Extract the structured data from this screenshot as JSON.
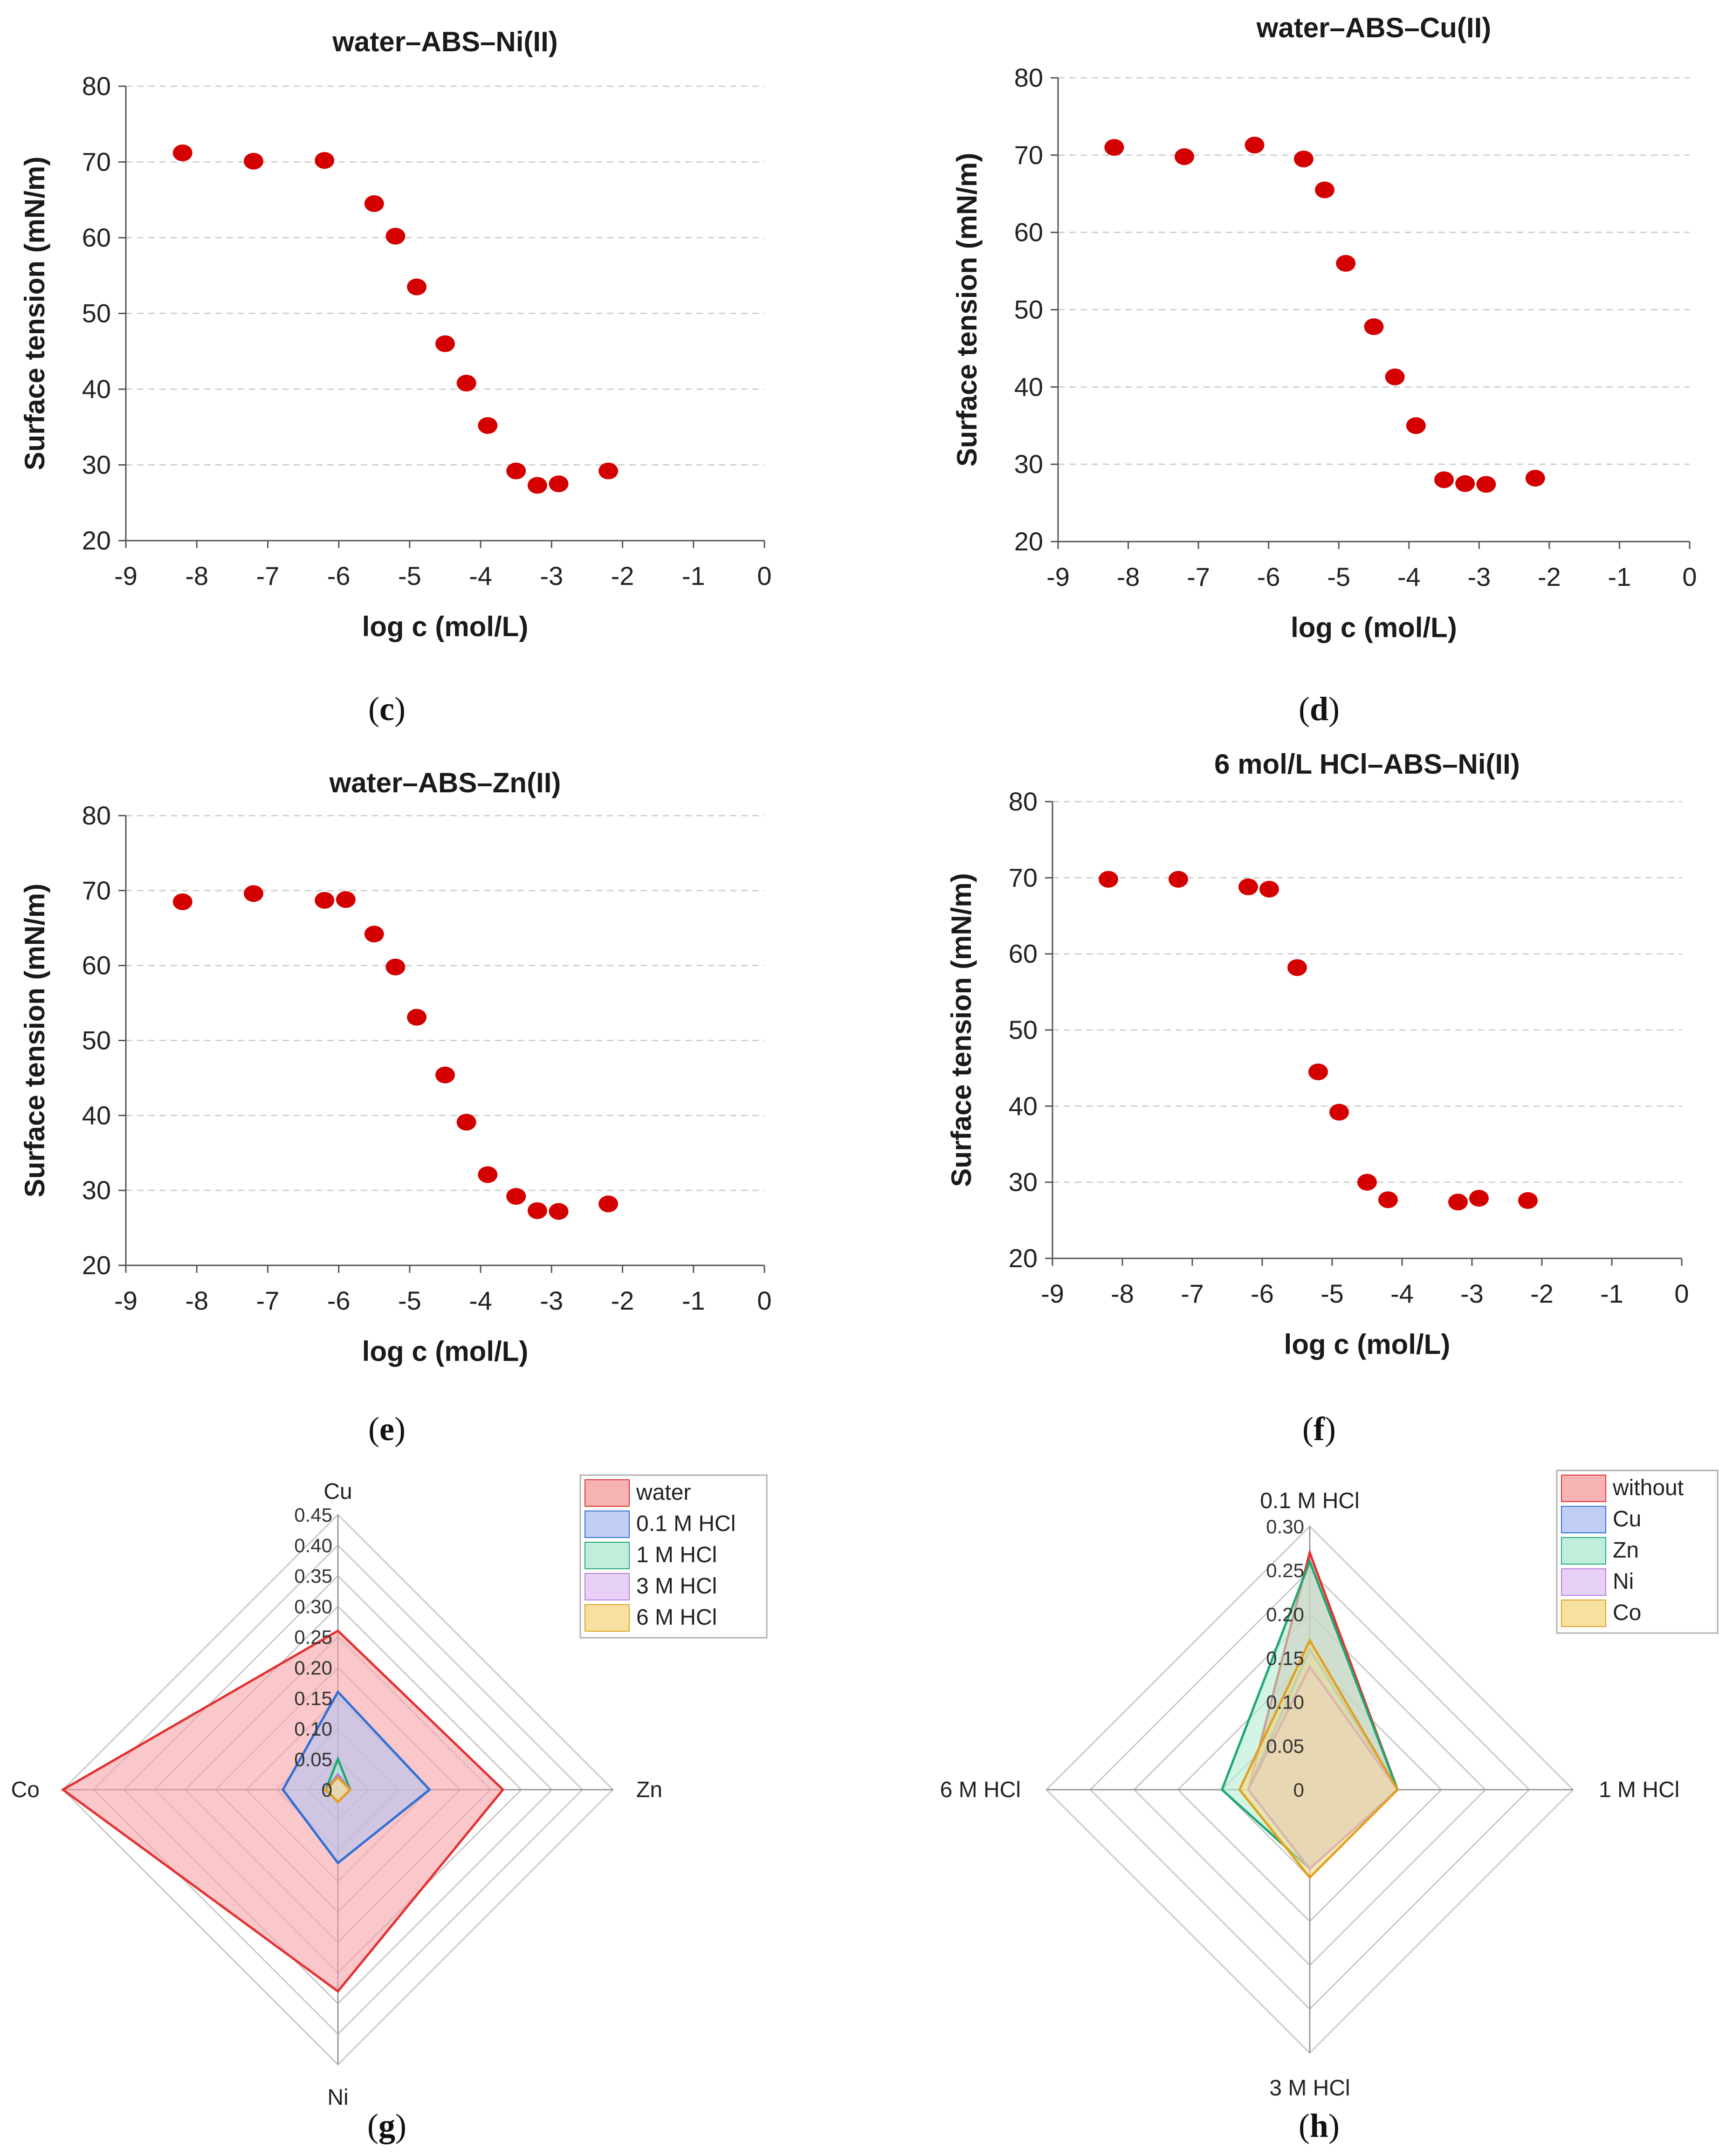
{
  "colors": {
    "marker": "#d40000",
    "grid": "#d0d0d0",
    "axis": "#555555"
  },
  "chart_data": [
    {
      "type": "scatter",
      "panel": "c",
      "title": "water–ABS–Ni(II)",
      "xlabel": "log c (mol/L)",
      "ylabel": "Surface tension (mN/m)",
      "xlim": [
        -9,
        0
      ],
      "ylim": [
        20,
        80
      ],
      "xticks": [
        "-9",
        "-8",
        "-7",
        "-6",
        "-5",
        "-4",
        "-3",
        "-2",
        "-1",
        "0"
      ],
      "yticks": [
        "20",
        "30",
        "40",
        "50",
        "60",
        "70",
        "80"
      ],
      "points": [
        [
          -8.2,
          71.2
        ],
        [
          -7.2,
          70.1
        ],
        [
          -6.2,
          70.2
        ],
        [
          -5.5,
          64.5
        ],
        [
          -5.2,
          60.2
        ],
        [
          -4.9,
          53.5
        ],
        [
          -4.5,
          46.0
        ],
        [
          -4.2,
          40.8
        ],
        [
          -3.9,
          35.2
        ],
        [
          -3.5,
          29.2
        ],
        [
          -3.2,
          27.3
        ],
        [
          -2.9,
          27.5
        ],
        [
          -2.2,
          29.2
        ]
      ],
      "caption": "c"
    },
    {
      "type": "scatter",
      "panel": "d",
      "title": "water–ABS–Cu(II)",
      "xlabel": "log c (mol/L)",
      "ylabel": "Surface tension (mN/m)",
      "xlim": [
        -9,
        0
      ],
      "ylim": [
        20,
        80
      ],
      "xticks": [
        "-9",
        "-8",
        "-7",
        "-6",
        "-5",
        "-4",
        "-3",
        "-2",
        "-1",
        "0"
      ],
      "yticks": [
        "20",
        "30",
        "40",
        "50",
        "60",
        "70",
        "80"
      ],
      "points": [
        [
          -8.2,
          71.0
        ],
        [
          -7.2,
          69.8
        ],
        [
          -6.2,
          71.3
        ],
        [
          -5.5,
          69.5
        ],
        [
          -5.2,
          65.5
        ],
        [
          -4.9,
          56.0
        ],
        [
          -4.5,
          47.8
        ],
        [
          -4.2,
          41.3
        ],
        [
          -3.9,
          35.0
        ],
        [
          -3.5,
          28.0
        ],
        [
          -3.2,
          27.5
        ],
        [
          -2.9,
          27.4
        ],
        [
          -2.2,
          28.2
        ]
      ],
      "caption": "d"
    },
    {
      "type": "scatter",
      "panel": "e",
      "title": "water–ABS–Zn(II)",
      "xlabel": "log c (mol/L)",
      "ylabel": "Surface tension (mN/m)",
      "xlim": [
        -9,
        0
      ],
      "ylim": [
        20,
        80
      ],
      "xticks": [
        "-9",
        "-8",
        "-7",
        "-6",
        "-5",
        "-4",
        "-3",
        "-2",
        "-1",
        "0"
      ],
      "yticks": [
        "20",
        "30",
        "40",
        "50",
        "60",
        "70",
        "80"
      ],
      "points": [
        [
          -8.2,
          68.5
        ],
        [
          -7.2,
          69.6
        ],
        [
          -6.2,
          68.7
        ],
        [
          -5.9,
          68.8
        ],
        [
          -5.5,
          64.2
        ],
        [
          -5.2,
          59.8
        ],
        [
          -4.9,
          53.1
        ],
        [
          -4.5,
          45.4
        ],
        [
          -4.2,
          39.1
        ],
        [
          -3.9,
          32.1
        ],
        [
          -3.5,
          29.2
        ],
        [
          -3.2,
          27.3
        ],
        [
          -2.9,
          27.2
        ],
        [
          -2.2,
          28.2
        ]
      ],
      "caption": "e"
    },
    {
      "type": "scatter",
      "panel": "f",
      "title": "6 mol/L HCl–ABS–Ni(II)",
      "xlabel": "log c (mol/L)",
      "ylabel": "Surface tension (mN/m)",
      "xlim": [
        -9,
        0
      ],
      "ylim": [
        20,
        80
      ],
      "xticks": [
        "-9",
        "-8",
        "-7",
        "-6",
        "-5",
        "-4",
        "-3",
        "-2",
        "-1",
        "0"
      ],
      "yticks": [
        "20",
        "30",
        "40",
        "50",
        "60",
        "70",
        "80"
      ],
      "points": [
        [
          -8.2,
          69.8
        ],
        [
          -7.2,
          69.8
        ],
        [
          -6.2,
          68.8
        ],
        [
          -5.9,
          68.5
        ],
        [
          -5.5,
          58.2
        ],
        [
          -5.2,
          44.5
        ],
        [
          -4.9,
          39.2
        ],
        [
          -4.5,
          30.0
        ],
        [
          -4.2,
          27.7
        ],
        [
          -3.2,
          27.4
        ],
        [
          -2.9,
          27.9
        ],
        [
          -2.2,
          27.6
        ]
      ],
      "caption": "f"
    },
    {
      "type": "radar",
      "panel": "g",
      "axes": [
        "Cu",
        "Zn",
        "Ni",
        "Co"
      ],
      "rmax": 0.45,
      "rticks": [
        "0",
        "0.05",
        "0.10",
        "0.15",
        "0.20",
        "0.25",
        "0.30",
        "0.35",
        "0.40",
        "0.45"
      ],
      "series": [
        {
          "name": "water",
          "values": [
            0.26,
            0.27,
            0.33,
            0.45
          ],
          "fill": "#f6a4a6",
          "stroke": "#e53030"
        },
        {
          "name": "0.1 M HCl",
          "values": [
            0.16,
            0.15,
            0.12,
            0.09
          ],
          "fill": "#b5c4f2",
          "stroke": "#2f6fd6"
        },
        {
          "name": "1 M HCl",
          "values": [
            0.05,
            0.02,
            0.02,
            0.02
          ],
          "fill": "#b4ecd4",
          "stroke": "#1fa872"
        },
        {
          "name": "3 M HCl",
          "values": [
            0.025,
            0.02,
            0.02,
            0.02
          ],
          "fill": "#e2c9f2",
          "stroke": "#b77de0"
        },
        {
          "name": "6 M HCl",
          "values": [
            0.02,
            0.02,
            0.02,
            0.02
          ],
          "fill": "#f4dc90",
          "stroke": "#e0a020"
        }
      ],
      "caption": "g"
    },
    {
      "type": "radar",
      "panel": "h",
      "axes": [
        "0.1 M HCl",
        "1 M HCl",
        "3 M HCl",
        "6 M HCl"
      ],
      "rmax": 0.3,
      "rticks": [
        "0",
        "0.05",
        "0.10",
        "0.15",
        "0.20",
        "0.25",
        "0.30"
      ],
      "series": [
        {
          "name": "without",
          "values": [
            0.27,
            0.1,
            0.09,
            0.07
          ],
          "fill": "#f6a4a6",
          "stroke": "#e53030"
        },
        {
          "name": "Cu",
          "values": [
            0.16,
            0.1,
            0.09,
            0.07
          ],
          "fill": "#b5c4f2",
          "stroke": "#2f6fd6"
        },
        {
          "name": "Zn",
          "values": [
            0.26,
            0.1,
            0.09,
            0.1
          ],
          "fill": "#b4ecd4",
          "stroke": "#1fa872"
        },
        {
          "name": "Ni",
          "values": [
            0.14,
            0.1,
            0.09,
            0.07
          ],
          "fill": "#e2c9f2",
          "stroke": "#b77de0"
        },
        {
          "name": "Co",
          "values": [
            0.17,
            0.1,
            0.1,
            0.08
          ],
          "fill": "#f4dc90",
          "stroke": "#e0a020"
        }
      ],
      "caption": "h"
    }
  ]
}
